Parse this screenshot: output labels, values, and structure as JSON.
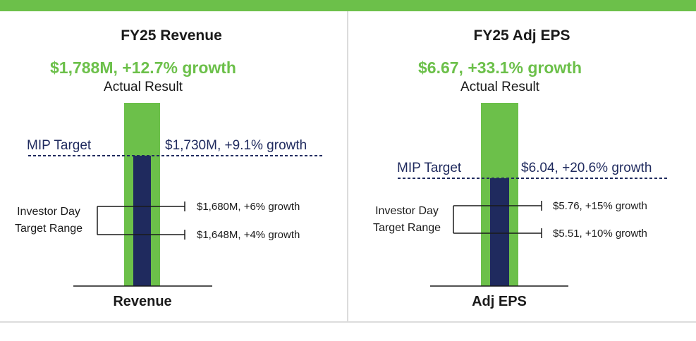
{
  "colors": {
    "accent_green": "#6cc04a",
    "navy": "#1f2a5e",
    "text": "#1a1a1a"
  },
  "chart_data": [
    {
      "type": "bar",
      "title": "FY25 Revenue",
      "xlabel": "Revenue",
      "unit": "$M",
      "actual": {
        "value": 1788,
        "label": "$1,788M, +12.7% growth",
        "caption": "Actual Result"
      },
      "mip_target": {
        "value": 1730,
        "name": "MIP Target",
        "label": "$1,730M, +9.1% growth"
      },
      "investor_day_range": {
        "label_line1": "Investor Day",
        "label_line2": "Target Range",
        "high": {
          "value": 1680,
          "label": "$1,680M, +6% growth"
        },
        "low": {
          "value": 1648,
          "label": "$1,648M, +4% growth"
        }
      }
    },
    {
      "type": "bar",
      "title": "FY25 Adj EPS",
      "xlabel": "Adj EPS",
      "unit": "$",
      "actual": {
        "value": 6.67,
        "label": "$6.67, +33.1% growth",
        "caption": "Actual Result"
      },
      "mip_target": {
        "value": 6.04,
        "name": "MIP Target",
        "label": "$6.04, +20.6% growth"
      },
      "investor_day_range": {
        "label_line1": "Investor Day",
        "label_line2": "Target Range",
        "high": {
          "value": 5.76,
          "label": "$5.76, +15% growth"
        },
        "low": {
          "value": 5.51,
          "label": "$5.51, +10% growth"
        }
      }
    }
  ]
}
